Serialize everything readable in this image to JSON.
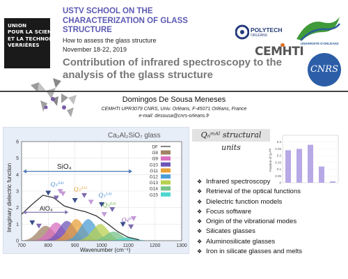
{
  "header": {
    "school_title": "USTV SCHOOL ON THE CHARACTERIZATION OF GLASS STRUCTURE",
    "subtitle": "How to assess the glass structure",
    "dates": "November 18-22, 2019",
    "talk_title": "Contribution of infrared spectroscopy to the analysis of the glass structure"
  },
  "logos": {
    "union_lines": [
      "UNION",
      "POUR LA SCIENCE",
      "ET LA TECHNOLOGIE",
      "VERRIÈRES"
    ],
    "polytech": "POLYTECH",
    "polytech_sub": "ORLÉANS",
    "university": "UNIVERSITÉ D'ORLÉANS",
    "cemhti": "CEMHTI",
    "cnrs": "CNRS"
  },
  "author": {
    "name": "Domingos De Sousa Meneses",
    "affiliation": "CEMHTI UPR3079 CNRS, Univ. Orléans, F-45071 Orléans, France",
    "email": "e-mail: desousa@cnrs-orleans.fr"
  },
  "chart_data": [
    {
      "type": "area",
      "title": "Ca₂Al₂SiO₇ glass",
      "xlabel": "Wavenumber (cm⁻¹)",
      "ylabel": "Imaginary dielectric function",
      "xlim": [
        700,
        1300
      ],
      "ylim": [
        0,
        6
      ],
      "xticks": [
        700,
        800,
        900,
        1000,
        1100,
        1200,
        1300
      ],
      "yticks": [
        0,
        1,
        2,
        3,
        4,
        5,
        6
      ],
      "grid": true,
      "legend_position": "top-right",
      "legend": [
        "DF",
        "G8",
        "G9",
        "G10",
        "G11",
        "G12",
        "G13",
        "G14",
        "G15"
      ],
      "colors": {
        "DF": "#333333",
        "G8": "#a08264",
        "G9": "#d96fc0",
        "G10": "#6e56b8",
        "G11": "#e8a23a",
        "G12": "#4e9fd6",
        "G13": "#b8d050",
        "G14": "#76c28a",
        "G15": "#4ed6d0"
      },
      "series": [
        {
          "name": "DF",
          "x": [
            700,
            740,
            780,
            820,
            860,
            900,
            940,
            980,
            1020,
            1060,
            1100,
            1140
          ],
          "values": [
            1.6,
            2.2,
            2.75,
            2.6,
            2.1,
            1.9,
            1.75,
            1.5,
            1.05,
            0.55,
            0.2,
            0.05
          ]
        },
        {
          "name": "G8",
          "center": 790,
          "height": 0.9
        },
        {
          "name": "G9",
          "center": 830,
          "height": 1.1
        },
        {
          "name": "G10",
          "center": 870,
          "height": 1.2
        },
        {
          "name": "G11",
          "center": 905,
          "height": 1.3
        },
        {
          "name": "G12",
          "center": 950,
          "height": 1.3
        },
        {
          "name": "G13",
          "center": 995,
          "height": 1.0
        },
        {
          "name": "G14",
          "center": 1045,
          "height": 0.55
        },
        {
          "name": "G15",
          "center": 1100,
          "height": 0.2
        }
      ],
      "annotations": {
        "sio4": "SiO₄",
        "alo4": "AlO₄",
        "q3_3al": "Q₃³ᴬˡ",
        "q3_2al": "Q₃²ᴬˡ",
        "q3_1al": "Q₃¹ᴬˡ",
        "q3_0al": "Q₃⁰ᴬˡ",
        "q4_0al": "Q₄⁰ᴬˡ"
      }
    },
    {
      "type": "bar",
      "ylabel": "Fraction of Qₙᵐᴬˡ",
      "ylim": [
        0,
        0.35
      ],
      "yticks": [
        "0",
        "0.05",
        "0.1",
        "0.15",
        "0.2",
        "0.25",
        "0.3"
      ],
      "categories": [
        "1",
        "2",
        "3",
        "4",
        "5"
      ],
      "values": [
        0.24,
        0.25,
        0.28,
        0.12,
        0.01
      ],
      "color": "#b7a8e6"
    }
  ],
  "units_title": "Qₙᵐᴬˡ structural units",
  "bullets": [
    "Infrared spectroscopy",
    "Retrieval of the optical functions",
    "Dielectric function models",
    "Focus software",
    "Origin of the vibrational modes",
    "Silicates glasses",
    "Aluminosilicate glasses",
    "Iron in silicate glasses and melts"
  ]
}
